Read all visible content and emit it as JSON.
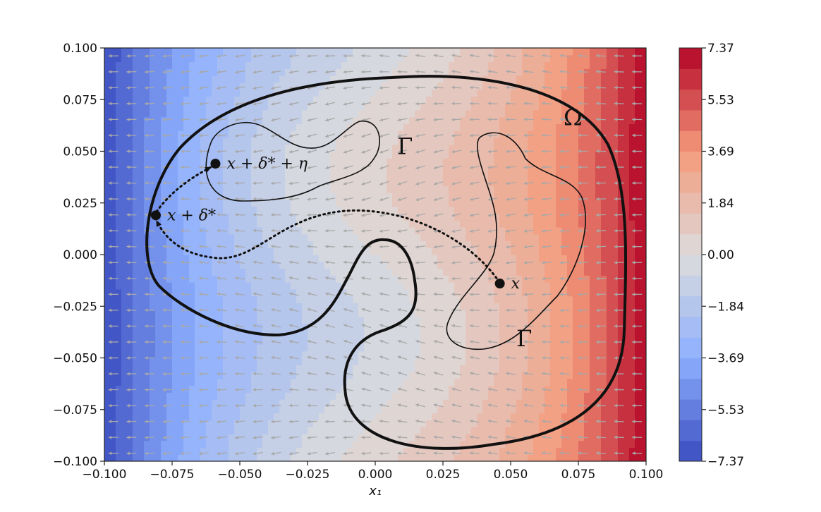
{
  "chart_data": {
    "type": "heatmap",
    "xlabel": "x₁",
    "ylabel": "",
    "xlim": [
      -0.1,
      0.1
    ],
    "ylim": [
      -0.1,
      0.1
    ],
    "x_ticks": [
      "−0.100",
      "−0.075",
      "−0.050",
      "−0.025",
      "0.000",
      "0.025",
      "0.050",
      "0.075",
      "0.100"
    ],
    "y_ticks": [
      "−0.100",
      "−0.075",
      "−0.050",
      "−0.025",
      "0.000",
      "0.025",
      "0.050",
      "0.075",
      "0.100"
    ],
    "colorbar": {
      "range": [
        -7.37,
        7.37
      ],
      "levels": 20,
      "colormap": "coolwarm",
      "ticks": [
        "7.37",
        "5.53",
        "3.69",
        "1.84",
        "0.00",
        "−1.84",
        "−3.69",
        "−5.53",
        "−7.37"
      ]
    },
    "vector_field": {
      "arrow_color": "#a8a8a8",
      "direction": "negative x"
    },
    "annotations": [
      {
        "text": "Ω",
        "x": 0.073,
        "y": 0.066
      },
      {
        "text": "Γ",
        "x": 0.011,
        "y": 0.052
      },
      {
        "text": "Γ",
        "x": 0.055,
        "y": -0.041
      },
      {
        "text": "x",
        "x": 0.046,
        "y": -0.014
      },
      {
        "text": "x + δ* + η",
        "x": -0.059,
        "y": 0.044
      },
      {
        "text": "x + δ*",
        "x": -0.081,
        "y": 0.019
      }
    ],
    "points": [
      {
        "x": 0.046,
        "y": -0.014
      },
      {
        "x": -0.081,
        "y": 0.019
      },
      {
        "x": -0.059,
        "y": 0.044
      }
    ]
  }
}
